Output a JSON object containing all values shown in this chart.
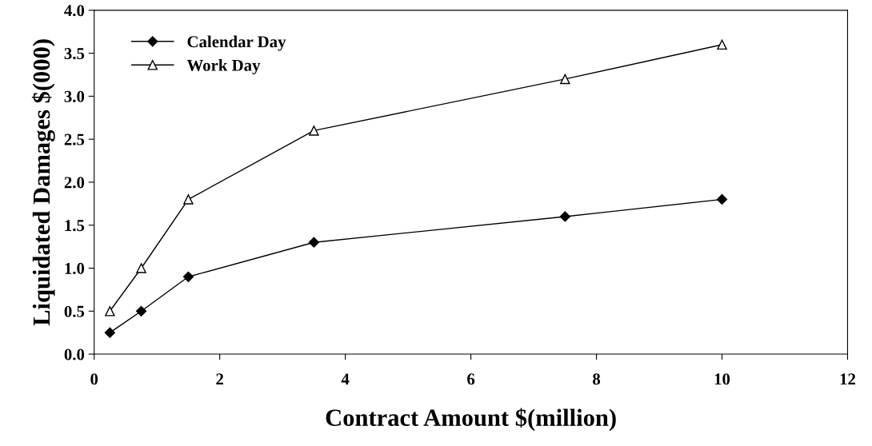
{
  "chart_data": {
    "type": "line",
    "xlabel": "Contract Amount $(million)",
    "ylabel": "Liquidated Damages $(000)",
    "x": [
      0.25,
      0.75,
      1.5,
      3.5,
      7.5,
      10
    ],
    "series": [
      {
        "name": "Calendar Day",
        "color": "#000000",
        "marker": "diamond",
        "values": [
          0.25,
          0.5,
          0.9,
          1.3,
          1.6,
          1.8
        ]
      },
      {
        "name": "Work Day",
        "color": "#000000",
        "marker": "triangle",
        "values": [
          0.5,
          1.0,
          1.8,
          2.6,
          3.2,
          3.6
        ]
      }
    ],
    "xlim": [
      0,
      12
    ],
    "xticks": [
      0,
      2,
      4,
      6,
      8,
      10,
      12
    ],
    "ylim": [
      0,
      4
    ],
    "yticks": [
      {
        "value": 0,
        "label": "0.0"
      },
      {
        "value": 0.5,
        "label": "0.5"
      },
      {
        "value": 1,
        "label": "1.0"
      },
      {
        "value": 1.5,
        "label": "1.5"
      },
      {
        "value": 2,
        "label": "2.0"
      },
      {
        "value": 2.5,
        "label": "2.5"
      },
      {
        "value": 3,
        "label": "3.0"
      },
      {
        "value": 3.5,
        "label": "3.5"
      },
      {
        "value": 4,
        "label": "4.0"
      }
    ],
    "grid": false,
    "legend": "top left",
    "line_style": "solid"
  }
}
